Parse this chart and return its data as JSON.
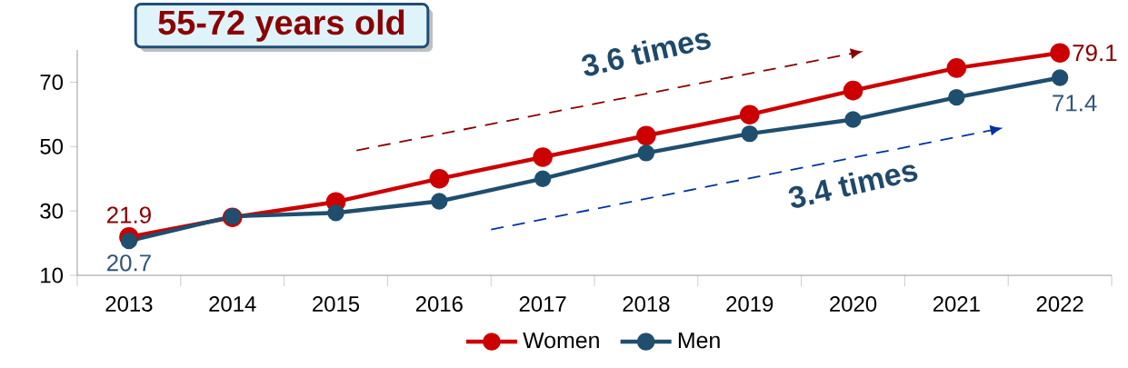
{
  "chart_data": {
    "type": "line",
    "title": "55-72 years old",
    "categories": [
      "2013",
      "2014",
      "2015",
      "2016",
      "2017",
      "2018",
      "2019",
      "2020",
      "2021",
      "2022"
    ],
    "series": [
      {
        "name": "Women",
        "color": "#cc0000",
        "values": [
          21.9,
          28.0,
          32.8,
          40.0,
          46.7,
          53.4,
          59.9,
          67.4,
          74.4,
          79.1
        ],
        "value_labels": [
          "21.9",
          null,
          null,
          null,
          null,
          null,
          null,
          null,
          null,
          "79.1"
        ]
      },
      {
        "name": "Men",
        "color": "#1f4e6e",
        "values": [
          20.7,
          28.3,
          29.4,
          33.0,
          40.0,
          48.0,
          54.0,
          58.4,
          65.3,
          71.4
        ],
        "value_labels": [
          "20.7",
          null,
          null,
          null,
          null,
          null,
          null,
          null,
          null,
          "71.4"
        ]
      }
    ],
    "ylim": [
      10,
      80
    ],
    "yticks": [
      10,
      30,
      50,
      70
    ],
    "grid": false,
    "legend": "bottom",
    "marker": "circle",
    "line_style": "solid",
    "annotations": [
      "3.6 times",
      "3.4 times"
    ]
  }
}
